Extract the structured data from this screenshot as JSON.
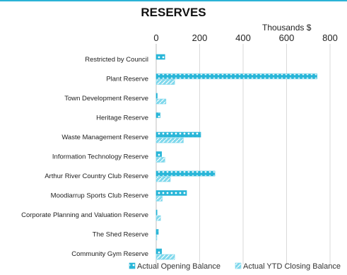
{
  "chart_data": {
    "type": "bar",
    "orientation": "horizontal",
    "title": "RESERVES",
    "unit_label": "Thousands $",
    "xlim": [
      0,
      850
    ],
    "x_ticks": [
      "0",
      "200",
      "400",
      "600",
      "800"
    ],
    "x_tick_values": [
      0,
      200,
      400,
      600,
      800
    ],
    "grid": true,
    "legend_position": "bottom-right",
    "categories": [
      "Restricted by Council",
      "Plant Reserve",
      "Town Development Reserve",
      "Heritage Reserve",
      "Waste Management Reserve",
      "Information Technology Reserve",
      "Arthur River Country Club Reserve",
      "Moodiarrup Sports Club Reserve",
      "Corporate Planning and Valuation Reserve",
      "The Shed Reserve",
      "Community Gym Reserve"
    ],
    "series": [
      {
        "name": "Actual Opening Balance",
        "color": "#29b6d8",
        "values": [
          40,
          740,
          5,
          18,
          205,
          25,
          270,
          140,
          4,
          10,
          25
        ]
      },
      {
        "name": "Actual YTD Closing Balance",
        "color": "#7fd8ec",
        "values": [
          0,
          85,
          45,
          0,
          125,
          40,
          65,
          28,
          20,
          2,
          85
        ]
      }
    ]
  }
}
